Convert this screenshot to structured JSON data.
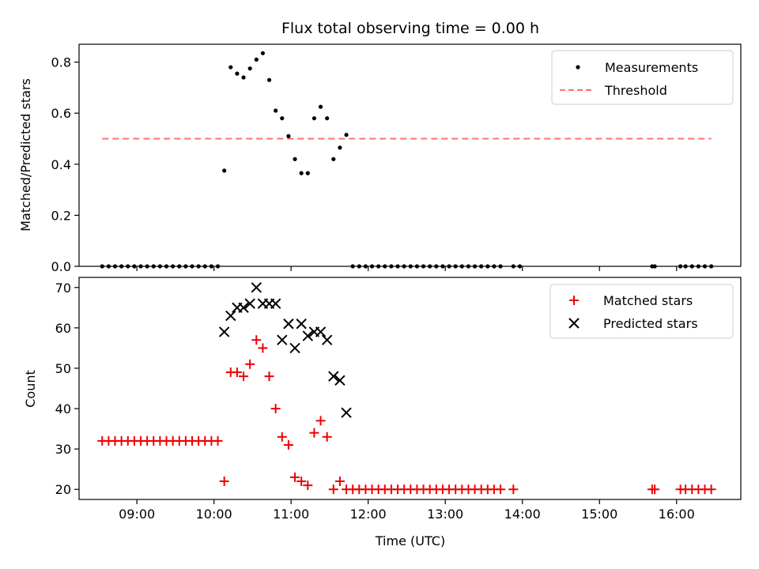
{
  "chart_data": [
    {
      "type": "scatter",
      "title": "Flux total observing time = 0.00 h",
      "xlabel": "",
      "ylabel": "Matched/Predicted stars",
      "xlim": [
        "08:15",
        "16:50"
      ],
      "ylim": [
        0,
        0.87
      ],
      "yticks": [
        "0.0",
        "0.2",
        "0.4",
        "0.6",
        "0.8"
      ],
      "grid": false,
      "legend_position": "top-right",
      "series": [
        {
          "name": "Measurements",
          "marker": "dot",
          "color": "#000000",
          "points": [
            [
              "08:33",
              0.0
            ],
            [
              "08:38",
              0.0
            ],
            [
              "08:43",
              0.0
            ],
            [
              "08:48",
              0.0
            ],
            [
              "08:53",
              0.0
            ],
            [
              "08:58",
              0.0
            ],
            [
              "09:03",
              0.0
            ],
            [
              "09:08",
              0.0
            ],
            [
              "09:13",
              0.0
            ],
            [
              "09:18",
              0.0
            ],
            [
              "09:23",
              0.0
            ],
            [
              "09:28",
              0.0
            ],
            [
              "09:33",
              0.0
            ],
            [
              "09:38",
              0.0
            ],
            [
              "09:43",
              0.0
            ],
            [
              "09:48",
              0.0
            ],
            [
              "09:53",
              0.0
            ],
            [
              "09:58",
              0.0
            ],
            [
              "10:03",
              0.0
            ],
            [
              "10:08",
              0.375
            ],
            [
              "10:13",
              0.78
            ],
            [
              "10:18",
              0.755
            ],
            [
              "10:23",
              0.74
            ],
            [
              "10:28",
              0.775
            ],
            [
              "10:33",
              0.81
            ],
            [
              "10:38",
              0.835
            ],
            [
              "10:43",
              0.73
            ],
            [
              "10:48",
              0.61
            ],
            [
              "10:53",
              0.58
            ],
            [
              "10:58",
              0.51
            ],
            [
              "11:03",
              0.42
            ],
            [
              "11:08",
              0.365
            ],
            [
              "11:13",
              0.365
            ],
            [
              "11:18",
              0.58
            ],
            [
              "11:23",
              0.625
            ],
            [
              "11:28",
              0.58
            ],
            [
              "11:33",
              0.42
            ],
            [
              "11:38",
              0.465
            ],
            [
              "11:43",
              0.515
            ],
            [
              "11:48",
              0.0
            ],
            [
              "11:53",
              0.0
            ],
            [
              "11:58",
              0.0
            ],
            [
              "12:03",
              0.0
            ],
            [
              "12:08",
              0.0
            ],
            [
              "12:13",
              0.0
            ],
            [
              "12:18",
              0.0
            ],
            [
              "12:23",
              0.0
            ],
            [
              "12:28",
              0.0
            ],
            [
              "12:33",
              0.0
            ],
            [
              "12:38",
              0.0
            ],
            [
              "12:43",
              0.0
            ],
            [
              "12:48",
              0.0
            ],
            [
              "12:53",
              0.0
            ],
            [
              "12:58",
              0.0
            ],
            [
              "13:03",
              0.0
            ],
            [
              "13:08",
              0.0
            ],
            [
              "13:13",
              0.0
            ],
            [
              "13:18",
              0.0
            ],
            [
              "13:23",
              0.0
            ],
            [
              "13:28",
              0.0
            ],
            [
              "13:33",
              0.0
            ],
            [
              "13:38",
              0.0
            ],
            [
              "13:43",
              0.0
            ],
            [
              "13:53",
              0.0
            ],
            [
              "13:58",
              0.0
            ],
            [
              "15:41",
              0.0
            ],
            [
              "15:43",
              0.0
            ],
            [
              "16:03",
              0.0
            ],
            [
              "16:07",
              0.0
            ],
            [
              "16:12",
              0.0
            ],
            [
              "16:17",
              0.0
            ],
            [
              "16:22",
              0.0
            ],
            [
              "16:27",
              0.0
            ]
          ]
        },
        {
          "name": "Threshold",
          "line": "dashed",
          "color": "#ff7070",
          "x": [
            "08:33",
            "16:27"
          ],
          "y": [
            0.5,
            0.5
          ]
        }
      ]
    },
    {
      "type": "scatter",
      "title": "",
      "xlabel": "Time (UTC)",
      "ylabel": "Count",
      "xlim": [
        "08:15",
        "16:50"
      ],
      "ylim": [
        17.5,
        72.5
      ],
      "yticks": [
        "20",
        "30",
        "40",
        "50",
        "60",
        "70"
      ],
      "xticks": [
        "09:00",
        "10:00",
        "11:00",
        "12:00",
        "13:00",
        "14:00",
        "15:00",
        "16:00"
      ],
      "grid": false,
      "legend_position": "top-right",
      "series": [
        {
          "name": "Matched stars",
          "marker": "plus",
          "color": "#ee0000",
          "points": [
            [
              "08:33",
              32
            ],
            [
              "08:38",
              32
            ],
            [
              "08:43",
              32
            ],
            [
              "08:48",
              32
            ],
            [
              "08:53",
              32
            ],
            [
              "08:58",
              32
            ],
            [
              "09:03",
              32
            ],
            [
              "09:08",
              32
            ],
            [
              "09:13",
              32
            ],
            [
              "09:18",
              32
            ],
            [
              "09:23",
              32
            ],
            [
              "09:28",
              32
            ],
            [
              "09:33",
              32
            ],
            [
              "09:38",
              32
            ],
            [
              "09:43",
              32
            ],
            [
              "09:48",
              32
            ],
            [
              "09:53",
              32
            ],
            [
              "09:58",
              32
            ],
            [
              "10:03",
              32
            ],
            [
              "10:08",
              22
            ],
            [
              "10:13",
              49
            ],
            [
              "10:18",
              49
            ],
            [
              "10:23",
              48
            ],
            [
              "10:28",
              51
            ],
            [
              "10:33",
              57
            ],
            [
              "10:38",
              55
            ],
            [
              "10:43",
              48
            ],
            [
              "10:48",
              40
            ],
            [
              "10:53",
              33
            ],
            [
              "10:58",
              31
            ],
            [
              "11:03",
              23
            ],
            [
              "11:08",
              22
            ],
            [
              "11:13",
              21
            ],
            [
              "11:18",
              34
            ],
            [
              "11:23",
              37
            ],
            [
              "11:28",
              33
            ],
            [
              "11:33",
              20
            ],
            [
              "11:38",
              22
            ],
            [
              "11:43",
              20
            ],
            [
              "11:48",
              20
            ],
            [
              "11:53",
              20
            ],
            [
              "11:58",
              20
            ],
            [
              "12:03",
              20
            ],
            [
              "12:08",
              20
            ],
            [
              "12:13",
              20
            ],
            [
              "12:18",
              20
            ],
            [
              "12:23",
              20
            ],
            [
              "12:28",
              20
            ],
            [
              "12:33",
              20
            ],
            [
              "12:38",
              20
            ],
            [
              "12:43",
              20
            ],
            [
              "12:48",
              20
            ],
            [
              "12:53",
              20
            ],
            [
              "12:58",
              20
            ],
            [
              "13:03",
              20
            ],
            [
              "13:08",
              20
            ],
            [
              "13:13",
              20
            ],
            [
              "13:18",
              20
            ],
            [
              "13:23",
              20
            ],
            [
              "13:28",
              20
            ],
            [
              "13:33",
              20
            ],
            [
              "13:38",
              20
            ],
            [
              "13:43",
              20
            ],
            [
              "13:53",
              20
            ],
            [
              "15:41",
              20
            ],
            [
              "15:43",
              20
            ],
            [
              "16:03",
              20
            ],
            [
              "16:07",
              20
            ],
            [
              "16:12",
              20
            ],
            [
              "16:17",
              20
            ],
            [
              "16:22",
              20
            ],
            [
              "16:27",
              20
            ]
          ]
        },
        {
          "name": "Predicted stars",
          "marker": "x",
          "color": "#000000",
          "points": [
            [
              "10:08",
              59
            ],
            [
              "10:13",
              63
            ],
            [
              "10:18",
              65
            ],
            [
              "10:23",
              65
            ],
            [
              "10:28",
              66
            ],
            [
              "10:33",
              70
            ],
            [
              "10:38",
              66
            ],
            [
              "10:43",
              66
            ],
            [
              "10:48",
              66
            ],
            [
              "10:53",
              57
            ],
            [
              "10:58",
              61
            ],
            [
              "11:03",
              55
            ],
            [
              "11:08",
              61
            ],
            [
              "11:13",
              58
            ],
            [
              "11:18",
              59
            ],
            [
              "11:23",
              59
            ],
            [
              "11:28",
              57
            ],
            [
              "11:33",
              48
            ],
            [
              "11:38",
              47
            ],
            [
              "11:43",
              39
            ]
          ]
        }
      ]
    }
  ]
}
